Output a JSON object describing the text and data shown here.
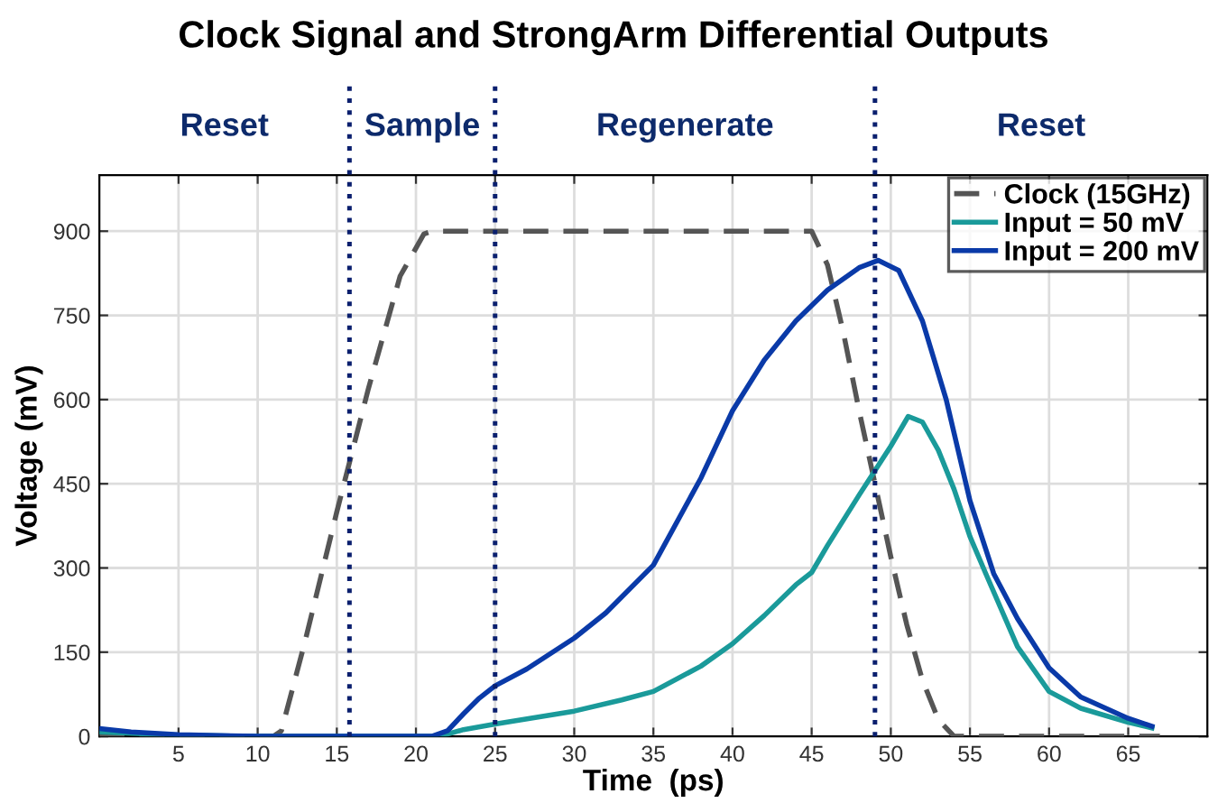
{
  "chart_data": {
    "type": "line",
    "title": "Clock Signal and StrongArm Differential Outputs",
    "xlabel": "Time  (ps)",
    "ylabel": "Voltage (mV)",
    "xlim": [
      0,
      70
    ],
    "xticks": [
      5,
      10,
      15,
      20,
      25,
      30,
      35,
      40,
      45,
      50,
      55,
      60,
      65
    ],
    "ylim": [
      0,
      1000
    ],
    "yticks": [
      0,
      150,
      300,
      450,
      600,
      750,
      900
    ],
    "grid": true,
    "legend": "top right",
    "marker": "none",
    "series": [
      {
        "name": "Clock (15GHz)",
        "color": "#555555",
        "line_style": "dashed",
        "x": [
          0,
          11,
          11.5,
          13,
          15,
          17,
          19,
          20.5,
          21,
          45,
          46,
          47,
          48,
          49,
          50,
          51,
          52,
          53,
          54,
          67
        ],
        "values": [
          0,
          0,
          10,
          170,
          400,
          620,
          820,
          895,
          900,
          900,
          840,
          720,
          580,
          450,
          320,
          200,
          100,
          30,
          0,
          0
        ]
      },
      {
        "name": "Input = 50 mV",
        "color": "#1a9a9a",
        "line_style": "solid",
        "x": [
          0,
          5,
          10,
          21.5,
          23,
          25,
          30,
          33,
          35,
          38,
          40,
          42,
          44,
          45,
          46,
          48,
          50,
          51.1,
          52,
          53,
          54,
          55,
          56,
          58,
          60,
          62,
          65,
          66.5
        ],
        "values": [
          8,
          2,
          0,
          0,
          12,
          22,
          45,
          65,
          80,
          125,
          165,
          215,
          270,
          292,
          340,
          430,
          517,
          570,
          560,
          510,
          440,
          356,
          290,
          160,
          80,
          50,
          25,
          15
        ]
      },
      {
        "name": "Input = 200 mV",
        "color": "#0a3aa8",
        "line_style": "solid",
        "x": [
          0,
          2,
          5,
          10,
          21,
          22,
          23,
          24,
          25,
          27,
          30,
          32,
          35,
          38,
          40,
          42,
          44,
          46,
          48,
          49.2,
          50.5,
          52,
          53.5,
          55,
          56.5,
          58,
          60,
          62,
          65,
          66.5
        ],
        "values": [
          14,
          8,
          3,
          0,
          0,
          10,
          40,
          68,
          90,
          120,
          175,
          220,
          305,
          460,
          580,
          670,
          740,
          795,
          835,
          848,
          830,
          740,
          600,
          420,
          290,
          210,
          122,
          70,
          32,
          18
        ]
      }
    ],
    "ref_lines": [
      {
        "axis": "x",
        "value": 15.8,
        "color": "#0a1f6e",
        "line_style": "dotted"
      },
      {
        "axis": "x",
        "value": 25,
        "color": "#0a1f6e",
        "line_style": "dotted"
      },
      {
        "axis": "x",
        "value": 49,
        "color": "#0a1f6e",
        "line_style": "dotted"
      }
    ],
    "annotations": [
      "Reset",
      "Sample",
      "Regenerate",
      "Reset"
    ]
  }
}
